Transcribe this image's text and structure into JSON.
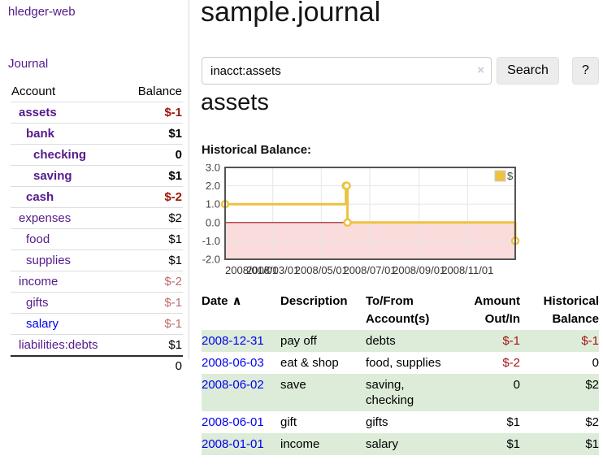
{
  "app": {
    "brand": "hledger-web",
    "nav_journal": "Journal"
  },
  "colors": {
    "link_visited": "#551A8B",
    "link_unvisited": "#0000EE",
    "negative_strong": "#9d1408",
    "negative_muted": "#bd6c6c",
    "register_row_green": "#dcecd9",
    "series_gold": "#edc240",
    "zero_line": "#991111",
    "negative_region_fill": "#fadcdc"
  },
  "sidebar": {
    "header": {
      "account": "Account",
      "balance": "Balance"
    },
    "accounts": [
      {
        "name": "assets",
        "indent": 1,
        "bold": true,
        "balance": "$-1",
        "balance_style": "neg-strong",
        "link": "visited"
      },
      {
        "name": "bank",
        "indent": 2,
        "bold": true,
        "balance": "$1",
        "balance_style": "pos",
        "link": "visited"
      },
      {
        "name": "checking",
        "indent": 3,
        "bold": true,
        "balance": "0",
        "balance_style": "pos",
        "link": "visited"
      },
      {
        "name": "saving",
        "indent": 3,
        "bold": true,
        "balance": "$1",
        "balance_style": "pos",
        "link": "visited"
      },
      {
        "name": "cash",
        "indent": 2,
        "bold": true,
        "balance": "$-2",
        "balance_style": "neg-strong",
        "link": "visited"
      },
      {
        "name": "expenses",
        "indent": 1,
        "bold": false,
        "balance": "$2",
        "balance_style": "pos",
        "link": "visited"
      },
      {
        "name": "food",
        "indent": 2,
        "bold": false,
        "balance": "$1",
        "balance_style": "pos",
        "link": "visited"
      },
      {
        "name": "supplies",
        "indent": 2,
        "bold": false,
        "balance": "$1",
        "balance_style": "pos",
        "link": "visited"
      },
      {
        "name": "income",
        "indent": 1,
        "bold": false,
        "balance": "$-2",
        "balance_style": "neg-muted",
        "link": "visited"
      },
      {
        "name": "gifts",
        "indent": 2,
        "bold": false,
        "balance": "$-1",
        "balance_style": "neg-muted",
        "link": "visited"
      },
      {
        "name": "salary",
        "indent": 2,
        "bold": false,
        "balance": "$-1",
        "balance_style": "neg-muted",
        "link": "unvisited"
      },
      {
        "name": "liabilities:debts",
        "indent": 1,
        "bold": false,
        "balance": "$1",
        "balance_style": "pos",
        "link": "visited"
      }
    ],
    "total": "0"
  },
  "main": {
    "title": "sample.journal",
    "search": {
      "value": "inacct:assets",
      "clear_icon": "×",
      "button": "Search",
      "help_button": "?"
    },
    "account_heading": "assets",
    "chart_label": "Historical Balance:"
  },
  "chart_data": {
    "type": "line",
    "title": "Historical Balance",
    "step": true,
    "series": [
      {
        "name": "$",
        "color": "#edc240",
        "points": [
          [
            "2008-01-01",
            1
          ],
          [
            "2008-06-01",
            2
          ],
          [
            "2008-06-02",
            2
          ],
          [
            "2008-06-03",
            0
          ],
          [
            "2008-12-31",
            -1
          ]
        ]
      }
    ],
    "ylim": [
      -2.0,
      3.0
    ],
    "yticks": [
      "3.0",
      "2.0",
      "1.0",
      "0.0",
      "-1.0",
      "-2.0"
    ],
    "xticks": [
      {
        "label": "2008/01/01",
        "date": "2008-01-01"
      },
      {
        "label": "2008/03/01",
        "date": "2008-03-01"
      },
      {
        "label": "2008/05/01",
        "date": "2008-05-01"
      },
      {
        "label": "2008/07/01",
        "date": "2008-07-01"
      },
      {
        "label": "2008/09/01",
        "date": "2008-09-01"
      },
      {
        "label": "2008/11/01",
        "date": "2008-11-01"
      }
    ],
    "x_range": [
      "2008-01-01",
      "2008-12-31"
    ],
    "legend_position": "top-right",
    "grid": true
  },
  "register": {
    "columns": [
      {
        "label": "Date",
        "sort": "asc",
        "sort_icon": "∧"
      },
      {
        "label": "Description"
      },
      {
        "label": "To/From Account(s)"
      },
      {
        "label": "Amount Out/In",
        "align": "right"
      },
      {
        "label": "Historical Balance",
        "align": "right"
      }
    ],
    "rows": [
      {
        "date": "2008-12-31",
        "description": "pay off",
        "accounts": "debts",
        "amount": "$-1",
        "amount_negative": true,
        "balance": "$-1",
        "balance_negative": true,
        "green": true
      },
      {
        "date": "2008-06-03",
        "description": "eat & shop",
        "accounts": "food, supplies",
        "amount": "$-2",
        "amount_negative": true,
        "balance": "0",
        "balance_negative": false,
        "green": false
      },
      {
        "date": "2008-06-02",
        "description": "save",
        "accounts": "saving, checking",
        "amount": "0",
        "amount_negative": false,
        "balance": "$2",
        "balance_negative": false,
        "green": true
      },
      {
        "date": "2008-06-01",
        "description": "gift",
        "accounts": "gifts",
        "amount": "$1",
        "amount_negative": false,
        "balance": "$2",
        "balance_negative": false,
        "green": false
      },
      {
        "date": "2008-01-01",
        "description": "income",
        "accounts": "salary",
        "amount": "$1",
        "amount_negative": false,
        "balance": "$1",
        "balance_negative": false,
        "green": true
      }
    ]
  }
}
